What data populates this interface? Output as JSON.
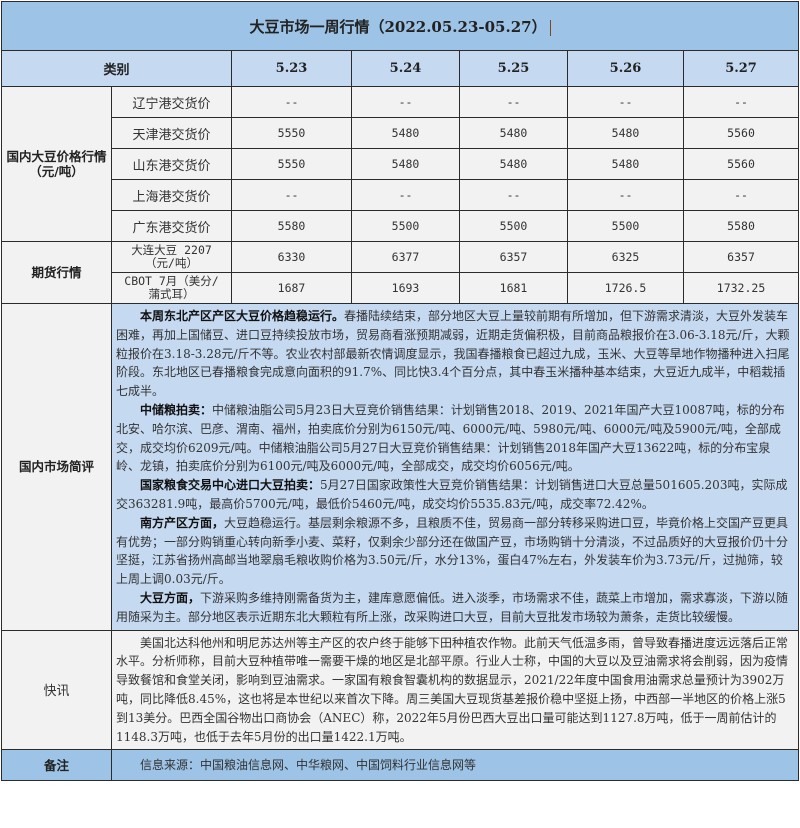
{
  "title": "大豆市场一周行情（2022.05.23-05.27）",
  "header": {
    "category": "类别",
    "dates": [
      "5.23",
      "5.24",
      "5.25",
      "5.26",
      "5.27"
    ]
  },
  "domestic": {
    "label": "国内大豆价格行情（元/吨）",
    "rows": [
      {
        "name": "辽宁港交货价",
        "values": [
          "--",
          "--",
          "--",
          "--",
          "--"
        ]
      },
      {
        "name": "天津港交货价",
        "values": [
          "5550",
          "5480",
          "5480",
          "5480",
          "5560"
        ]
      },
      {
        "name": "山东港交货价",
        "values": [
          "5550",
          "5480",
          "5480",
          "5480",
          "5560"
        ]
      },
      {
        "name": "上海港交货价",
        "values": [
          "--",
          "--",
          "--",
          "--",
          "--"
        ]
      },
      {
        "name": "广东港交货价",
        "values": [
          "5580",
          "5500",
          "5500",
          "5500",
          "5580"
        ]
      }
    ]
  },
  "futures": {
    "label": "期货行情",
    "rows": [
      {
        "name": "大连大豆 2207（元/吨）",
        "values": [
          "6330",
          "6377",
          "6357",
          "6325",
          "6357"
        ]
      },
      {
        "name": "CBOT 7月（美分/蒲式耳）",
        "values": [
          "1687",
          "1693",
          "1681",
          "1726.5",
          "1732.25"
        ]
      }
    ]
  },
  "commentary": {
    "label": "国内市场简评",
    "paragraphs": [
      {
        "lead": "本周东北产区产区大豆价格趋稳运行。",
        "text": "春播陆续结束，部分地区大豆上量较前期有所增加，但下游需求清淡，大豆外发装车困难，再加上国储豆、进口豆持续投放市场，贸易商看涨预期减弱，近期走货偏积极，目前商品粮报价在3.06-3.18元/斤，大颗粒报价在3.18-3.28元/斤不等。农业农村部最新农情调度显示，我国春播粮食已超过九成，玉米、大豆等旱地作物播种进入扫尾阶段。东北地区已春播粮食完成意向面积的91.7%、同比快3.4个百分点，其中春玉米播种基本结束，大豆近九成半，中稻栽插七成半。"
      },
      {
        "lead": "中储粮拍卖：",
        "text": "中储粮油脂公司5月23日大豆竞价销售结果：计划销售2018、2019、2021年国产大豆10087吨，标的分布北安、哈尔滨、巴彦、渭南、福州，拍卖底价分别为6150元/吨、6000元/吨、5980元/吨、6000元/吨及5900元/吨，全部成交，成交均价6209元/吨。中储粮油脂公司5月27日大豆竞价销售结果：计划销售2018年国产大豆13622吨，标的分布宝泉岭、龙镇，拍卖底价分别为6100元/吨及6000元/吨，全部成交，成交均价6056元/吨。"
      },
      {
        "lead": "国家粮食交易中心进口大豆拍卖：",
        "text": "5月27日国家政策性大豆竞价销售结果：计划销售进口大豆总量501605.203吨，实际成交363281.9吨，最高价5700元/吨，最低价5460元/吨，成交均价5535.83元/吨，成交率72.42%。"
      },
      {
        "lead": "南方产区方面，",
        "text": "大豆趋稳运行。基层剩余粮源不多，且粮质不佳，贸易商一部分转移采购进口豆，毕竟价格上交国产豆更具有优势；一部分购销重心转向新季小麦、菜籽，仅剩余少部分还在做国产豆，市场购销十分清淡，不过品质好的大豆报价仍十分坚挺，江苏省扬州高邮当地翠扇毛粮收购价格为3.50元/斤，水分13%，蛋白47%左右，外发装车价为3.73元/斤，过抛筛，较上周上调0.03元/斤。"
      },
      {
        "lead": "大豆方面，",
        "text": "下游采购多维持刚需备货为主，建库意愿偏低。进入淡季，市场需求不佳，蔬菜上市增加，需求寡淡，下游以随用随采为主。部分地区表示近期东北大颗粒有所上涨，改采购进口大豆，目前大豆批发市场较为萧条，走货比较缓慢。"
      }
    ]
  },
  "news": {
    "label": "快讯",
    "text": "美国北达科他州和明尼苏达州等主产区的农户终于能够下田种植农作物。此前天气低温多雨，曾导致春播进度远远落后正常水平。分析师称，目前大豆种植带唯一需要干燥的地区是北部平原。行业人士称，中国的大豆以及豆油需求将会削弱，因为疫情导致餐馆和食堂关闭，影响到豆油需求。一家国有粮食智囊机构的数据显示，2021/22年度中国食用油需求总量预计为3902万吨，同比降低8.45%，这也将是本世纪以来首次下降。周三美国大豆现货基差报价稳中坚挺上扬，中西部一半地区的价格上涨5到13美分。巴西全国谷物出口商协会（ANEC）称，2022年5月份巴西大豆出口量可能达到1127.8万吨，低于一周前估计的1148.3万吨，也低于去年5月份的出口量1422.1万吨。"
  },
  "note": {
    "label": "备注",
    "text": "信息来源：中国粮油信息网、中华粮网、中国饲料行业信息网等"
  }
}
